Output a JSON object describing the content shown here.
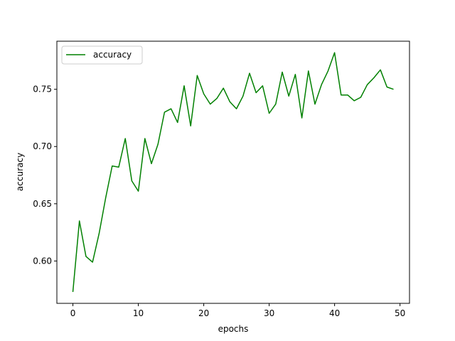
{
  "colors": {
    "series": "#008000",
    "axis": "#000000",
    "legend_border": "#cccccc",
    "background": "#ffffff"
  },
  "chart_data": {
    "type": "line",
    "xlabel": "epochs",
    "ylabel": "accuracy",
    "xlim": [
      -2.45,
      51.45
    ],
    "ylim": [
      0.563,
      0.792
    ],
    "x_ticks": [
      0,
      10,
      20,
      30,
      40,
      50
    ],
    "y_ticks": [
      0.6,
      0.65,
      0.7,
      0.75
    ],
    "x_tick_labels": [
      "0",
      "10",
      "20",
      "30",
      "40",
      "50"
    ],
    "y_tick_labels": [
      "0.60",
      "0.65",
      "0.70",
      "0.75"
    ],
    "grid": false,
    "legend_position": "top-left",
    "series": [
      {
        "name": "accuracy",
        "color": "#008000",
        "x": [
          0,
          1,
          2,
          3,
          4,
          5,
          6,
          7,
          8,
          9,
          10,
          11,
          12,
          13,
          14,
          15,
          16,
          17,
          18,
          19,
          20,
          21,
          22,
          23,
          24,
          25,
          26,
          27,
          28,
          29,
          30,
          31,
          32,
          33,
          34,
          35,
          36,
          37,
          38,
          39,
          40,
          41,
          42,
          43,
          44,
          45,
          46,
          47,
          48,
          49
        ],
        "y": [
          0.573,
          0.635,
          0.604,
          0.599,
          0.624,
          0.655,
          0.683,
          0.682,
          0.707,
          0.67,
          0.661,
          0.707,
          0.685,
          0.702,
          0.73,
          0.733,
          0.721,
          0.753,
          0.718,
          0.762,
          0.746,
          0.737,
          0.742,
          0.751,
          0.739,
          0.733,
          0.744,
          0.764,
          0.747,
          0.753,
          0.729,
          0.737,
          0.765,
          0.744,
          0.763,
          0.725,
          0.766,
          0.737,
          0.754,
          0.766,
          0.782,
          0.745,
          0.745,
          0.74,
          0.743,
          0.754,
          0.76,
          0.767,
          0.752,
          0.75
        ]
      }
    ]
  }
}
